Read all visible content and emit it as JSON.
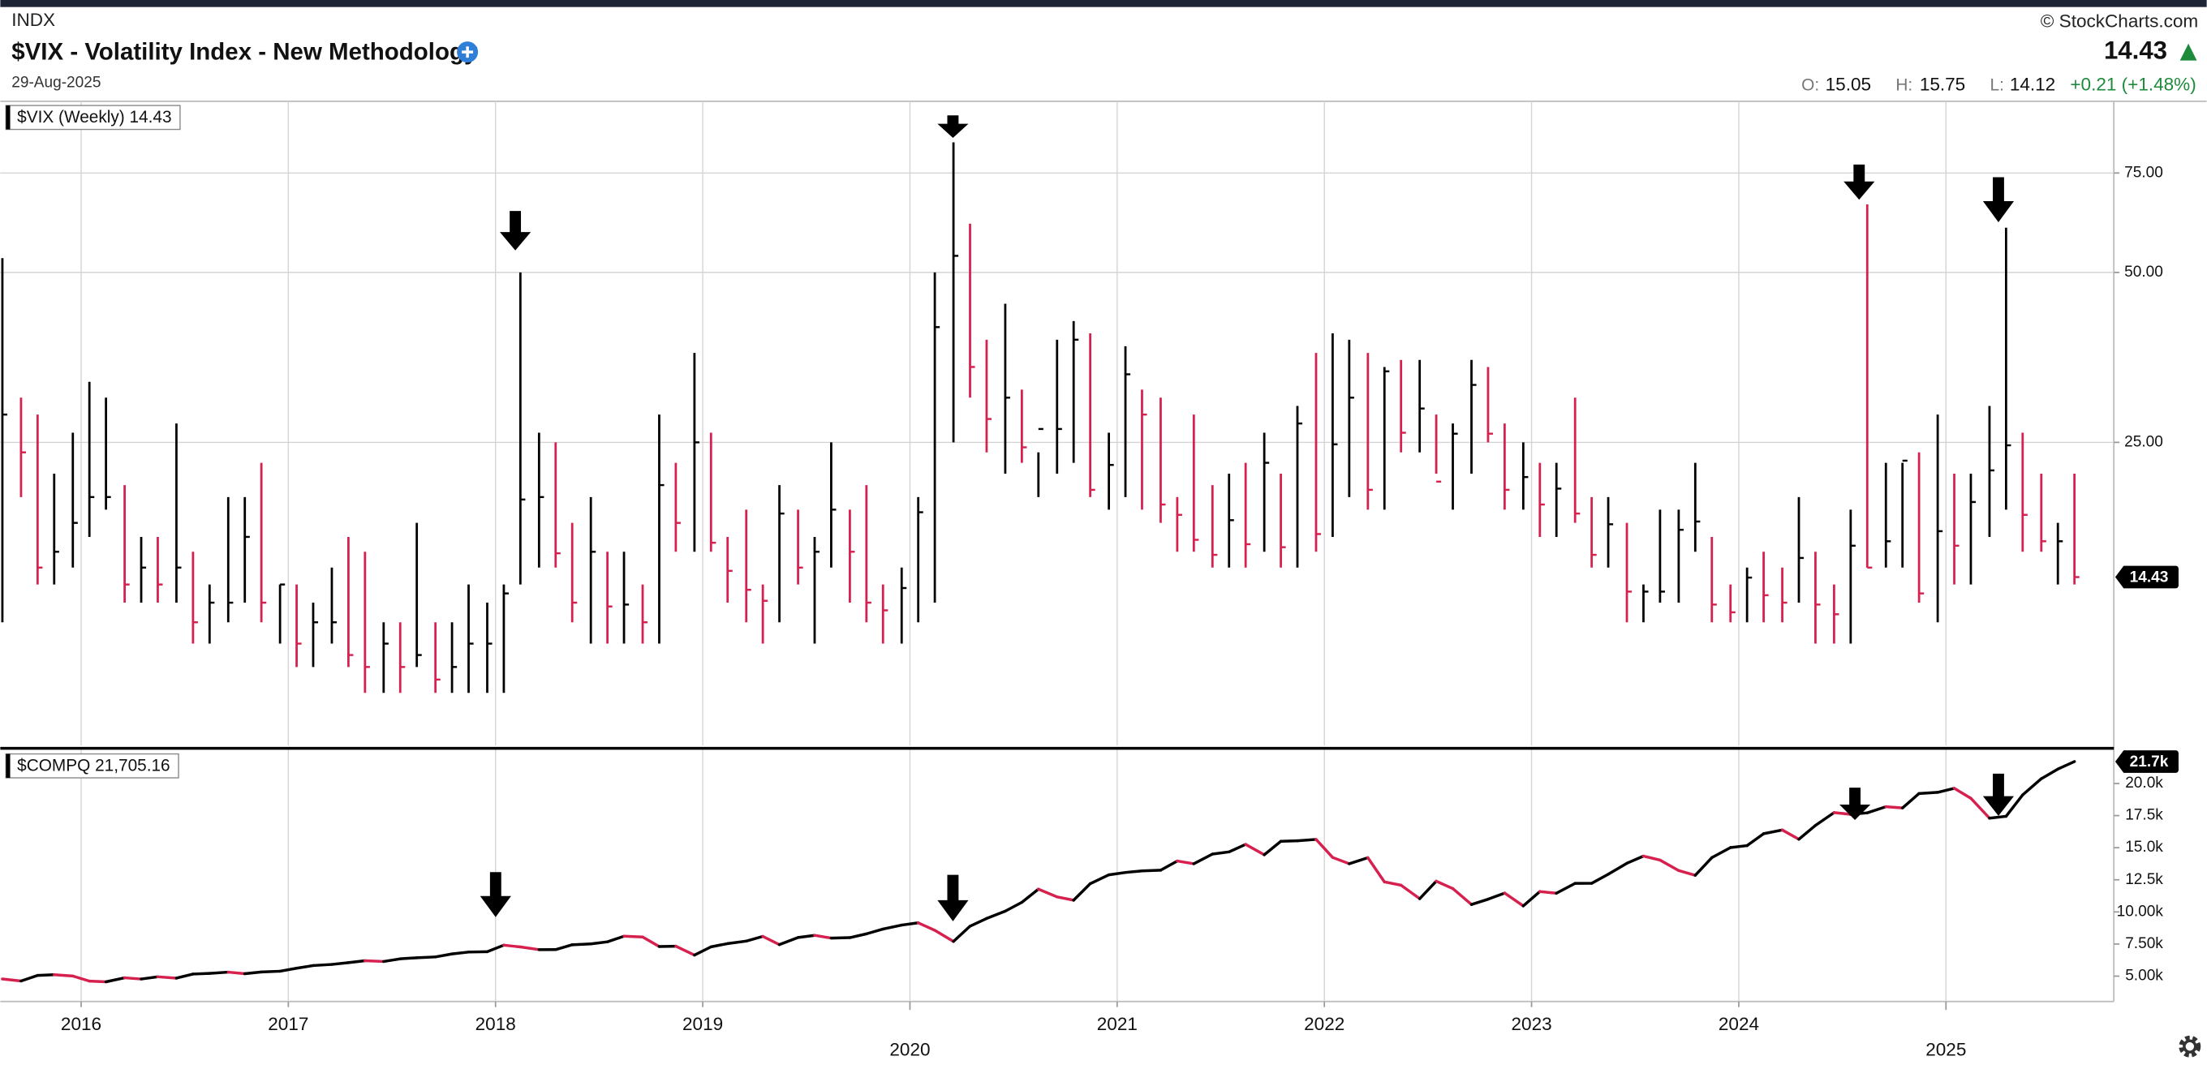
{
  "header": {
    "exchange": "INDX",
    "title": "$VIX - Volatility Index - New Methodology",
    "date": "29-Aug-2025",
    "copyright": "© StockCharts.com",
    "last": 14.43,
    "change": "+0.21 (+1.48%)",
    "open_label": "O:",
    "open": 15.05,
    "high_label": "H:",
    "high": 15.75,
    "low_label": "L:",
    "low": 14.12
  },
  "chart_data": {
    "x": [
      2015.62,
      2015.71,
      2015.79,
      2015.87,
      2015.96,
      2016.04,
      2016.12,
      2016.21,
      2016.29,
      2016.37,
      2016.46,
      2016.54,
      2016.62,
      2016.71,
      2016.79,
      2016.87,
      2016.96,
      2017.04,
      2017.12,
      2017.21,
      2017.29,
      2017.37,
      2017.46,
      2017.54,
      2017.62,
      2017.71,
      2017.79,
      2017.87,
      2017.96,
      2018.04,
      2018.12,
      2018.21,
      2018.29,
      2018.37,
      2018.46,
      2018.54,
      2018.62,
      2018.71,
      2018.79,
      2018.87,
      2018.96,
      2019.04,
      2019.12,
      2019.21,
      2019.29,
      2019.37,
      2019.46,
      2019.54,
      2019.62,
      2019.71,
      2019.79,
      2019.87,
      2019.96,
      2020.04,
      2020.12,
      2020.21,
      2020.29,
      2020.37,
      2020.46,
      2020.54,
      2020.62,
      2020.71,
      2020.79,
      2020.87,
      2020.96,
      2021.04,
      2021.12,
      2021.21,
      2021.29,
      2021.37,
      2021.46,
      2021.54,
      2021.62,
      2021.71,
      2021.79,
      2021.87,
      2021.96,
      2022.04,
      2022.12,
      2022.21,
      2022.29,
      2022.37,
      2022.46,
      2022.54,
      2022.62,
      2022.71,
      2022.79,
      2022.87,
      2022.96,
      2023.04,
      2023.12,
      2023.21,
      2023.29,
      2023.37,
      2023.46,
      2023.54,
      2023.62,
      2023.71,
      2023.79,
      2023.87,
      2023.96,
      2024.04,
      2024.12,
      2024.21,
      2024.29,
      2024.37,
      2024.46,
      2024.54,
      2024.62,
      2024.71,
      2024.79,
      2024.87,
      2024.96,
      2025.04,
      2025.12,
      2025.21,
      2025.29,
      2025.37,
      2025.46,
      2025.54,
      2025.62
    ],
    "xlim": [
      2015.61,
      2025.81
    ],
    "xticks": [
      2016,
      2017,
      2018,
      2019,
      2020,
      2021,
      2022,
      2023,
      2024,
      2025
    ],
    "grid": true,
    "up_color": "#000000",
    "down_color": "#d6204e",
    "panels": [
      {
        "type": "ohlc",
        "label": "$VIX (Weekly) 14.43",
        "log_scale": true,
        "grid": true,
        "ylim": [
          7.26,
          100.5
        ],
        "yticks": [
          {
            "value": 25,
            "label": "25.00"
          },
          {
            "value": 50,
            "label": "50.00"
          },
          {
            "value": 75,
            "label": "75.00"
          }
        ],
        "high": [
          53,
          30,
          28,
          22,
          26,
          32,
          30,
          21,
          17,
          17,
          27,
          16,
          14,
          20,
          20,
          23,
          14,
          14,
          13,
          15,
          17,
          16,
          12,
          12,
          18,
          12,
          12,
          14,
          13,
          14,
          50,
          26,
          25,
          18,
          20,
          16,
          16,
          14,
          28,
          23,
          36,
          26,
          17,
          19,
          14,
          21,
          19,
          17,
          25,
          19,
          21,
          14,
          15,
          20,
          50,
          85,
          61,
          38,
          44,
          31,
          24,
          38,
          41,
          39,
          26,
          37,
          31,
          30,
          20,
          28,
          21,
          22,
          23,
          26,
          22,
          29,
          36,
          39,
          38,
          36,
          34,
          35,
          35,
          28,
          27,
          35,
          34,
          27,
          25,
          23,
          23,
          30,
          20,
          20,
          18,
          14,
          19,
          19,
          23,
          17,
          14,
          15,
          16,
          15,
          20,
          16,
          14,
          19,
          66,
          23,
          23,
          24,
          28,
          22,
          22,
          29,
          60,
          26,
          22,
          18,
          22
        ],
        "low": [
          12,
          20,
          14,
          14,
          15,
          17,
          19,
          13,
          13,
          13,
          13,
          11,
          11,
          12,
          13,
          12,
          11,
          10,
          10,
          11,
          10,
          9,
          9,
          9,
          10,
          9,
          9,
          9,
          9,
          9,
          14,
          15,
          15,
          12,
          11,
          11,
          11,
          11,
          11,
          16,
          16,
          16,
          13,
          12,
          11,
          12,
          14,
          11,
          15,
          13,
          12,
          11,
          11,
          12,
          13,
          25,
          30,
          24,
          22,
          23,
          20,
          22,
          23,
          20,
          19,
          20,
          19,
          18,
          16,
          16,
          15,
          15,
          15,
          16,
          15,
          15,
          16,
          17,
          20,
          19,
          19,
          24,
          24,
          22,
          19,
          22,
          25,
          19,
          19,
          17,
          17,
          18,
          15,
          15,
          12,
          12,
          13,
          13,
          16,
          12,
          12,
          12,
          12,
          12,
          13,
          11,
          11,
          11,
          15,
          15,
          15,
          13,
          12,
          14,
          14,
          17,
          19,
          16,
          16,
          14,
          14
        ],
        "close": [
          28,
          24,
          15,
          16,
          18,
          20,
          20,
          14,
          15,
          14,
          15,
          12,
          13,
          13,
          17,
          13,
          14,
          11,
          12,
          12,
          10.5,
          10,
          11,
          10,
          10.5,
          9.5,
          10,
          11,
          11,
          13.5,
          19.8,
          20,
          15.9,
          13,
          16,
          12.8,
          12.9,
          12,
          21,
          18,
          25,
          16.6,
          14.8,
          13.7,
          13.1,
          18.7,
          15,
          16,
          19,
          16,
          13,
          12.6,
          13.8,
          18.8,
          40,
          53.5,
          34,
          27.5,
          30,
          24.5,
          26.4,
          26.4,
          38,
          20.6,
          22.8,
          33,
          28,
          19.4,
          18.6,
          16.8,
          15.8,
          18.2,
          16.5,
          23,
          16.3,
          27,
          17.2,
          24.8,
          30,
          20.6,
          33.4,
          26,
          28.7,
          21.3,
          25.9,
          31.6,
          25.9,
          20.6,
          21.7,
          19.4,
          20.7,
          18.7,
          15.8,
          17.9,
          13.6,
          13.6,
          13.6,
          17.5,
          18.1,
          12.9,
          12.5,
          14.4,
          13.4,
          13,
          15.6,
          12.9,
          12.4,
          16.4,
          15,
          16.7,
          23.2,
          13.5,
          17.4,
          16.4,
          19.6,
          22.3,
          24.7,
          18.6,
          16.7,
          16.7,
          14.43
        ]
      },
      {
        "type": "line",
        "label": "$COMPQ 21,705.16",
        "last_label": "21.7k",
        "log_scale": false,
        "grid": false,
        "ylim": [
          3026,
          22630
        ],
        "yticks": [
          {
            "value": 5000,
            "label": "5.00k"
          },
          {
            "value": 7500,
            "label": "7.50k"
          },
          {
            "value": 10000,
            "label": "10.00k"
          },
          {
            "value": 12500,
            "label": "12.5k"
          },
          {
            "value": 15000,
            "label": "15.0k"
          },
          {
            "value": 17500,
            "label": "17.5k"
          },
          {
            "value": 20000,
            "label": "20.0k"
          }
        ],
        "values": [
          4777,
          4620,
          5054,
          5109,
          5007,
          4614,
          4558,
          4870,
          4775,
          4948,
          4843,
          5162,
          5213,
          5312,
          5189,
          5324,
          5383,
          5615,
          5825,
          5912,
          6048,
          6199,
          6140,
          6348,
          6429,
          6496,
          6728,
          6874,
          6903,
          7411,
          7273,
          7063,
          7066,
          7442,
          7510,
          7672,
          8110,
          8046,
          7306,
          7331,
          6635,
          7282,
          7533,
          7729,
          8095,
          7453,
          8006,
          8175,
          7963,
          7999,
          8292,
          8665,
          8973,
          9151,
          8567,
          7700,
          8890,
          9490,
          10059,
          10745,
          11775,
          11168,
          10912,
          12199,
          12888,
          13071,
          13192,
          13247,
          13962,
          13749,
          14504,
          14673,
          15259,
          14449,
          15498,
          15538,
          15645,
          14240,
          13751,
          14221,
          12335,
          12081,
          11029,
          12391,
          11816,
          10576,
          10988,
          11468,
          10466,
          11585,
          11456,
          12222,
          12227,
          12935,
          13788,
          14346,
          14035,
          13219,
          12851,
          14226,
          15011,
          15164,
          16092,
          16379,
          15658,
          16735,
          17733,
          17599,
          17714,
          18189,
          18095,
          19218,
          19311,
          19627,
          18847,
          17299,
          17446,
          19114,
          20370,
          21122,
          21705
        ]
      }
    ]
  }
}
